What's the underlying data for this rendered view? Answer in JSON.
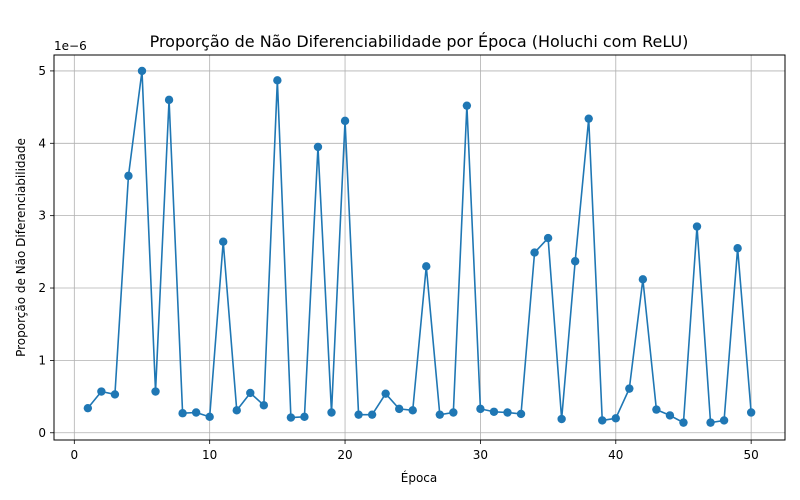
{
  "chart_data": {
    "type": "line",
    "title": "Proporção de Não Diferenciabilidade por Época (Holuchi com ReLU)",
    "xlabel": "Época",
    "ylabel": "Proporção de Não Diferenciabilidade",
    "y_offset_label": "1e−6",
    "xlim": [
      -1.5,
      52.5
    ],
    "ylim": [
      -1e-07,
      5.22e-06
    ],
    "x_ticks": [
      0,
      10,
      20,
      30,
      40,
      50
    ],
    "x_tick_labels": [
      "0",
      "10",
      "20",
      "30",
      "40",
      "50"
    ],
    "y_ticks": [
      0,
      1e-06,
      2e-06,
      3e-06,
      4e-06,
      5e-06
    ],
    "y_tick_labels": [
      "0",
      "1",
      "2",
      "3",
      "4",
      "5"
    ],
    "grid": true,
    "marker": "circle",
    "color": "#1f77b4",
    "series": [
      {
        "x": [
          1,
          2,
          3,
          4,
          5,
          6,
          7,
          8,
          9,
          10,
          11,
          12,
          13,
          14,
          15,
          16,
          17,
          18,
          19,
          20,
          21,
          22,
          23,
          24,
          25,
          26,
          27,
          28,
          29,
          30,
          31,
          32,
          33,
          34,
          35,
          36,
          37,
          38,
          39,
          40,
          41,
          42,
          43,
          44,
          45,
          46,
          47,
          48,
          49,
          50
        ],
        "y": [
          3.4e-07,
          5.7e-07,
          5.3e-07,
          3.55e-06,
          5e-06,
          5.7e-07,
          4.6e-06,
          2.7e-07,
          2.8e-07,
          2.2e-07,
          2.64e-06,
          3.1e-07,
          5.5e-07,
          3.8e-07,
          4.87e-06,
          2.1e-07,
          2.2e-07,
          3.95e-06,
          2.8e-07,
          4.31e-06,
          2.5e-07,
          2.5e-07,
          5.4e-07,
          3.3e-07,
          3.1e-07,
          2.3e-06,
          2.5e-07,
          2.8e-07,
          4.52e-06,
          3.3e-07,
          2.9e-07,
          2.8e-07,
          2.6e-07,
          2.49e-06,
          2.69e-06,
          1.9e-07,
          2.37e-06,
          4.34e-06,
          1.7e-07,
          2e-07,
          6.1e-07,
          2.12e-06,
          3.2e-07,
          2.4e-07,
          1.4e-07,
          2.85e-06,
          1.4e-07,
          1.7e-07,
          2.55e-06,
          2.8e-07
        ]
      }
    ]
  }
}
